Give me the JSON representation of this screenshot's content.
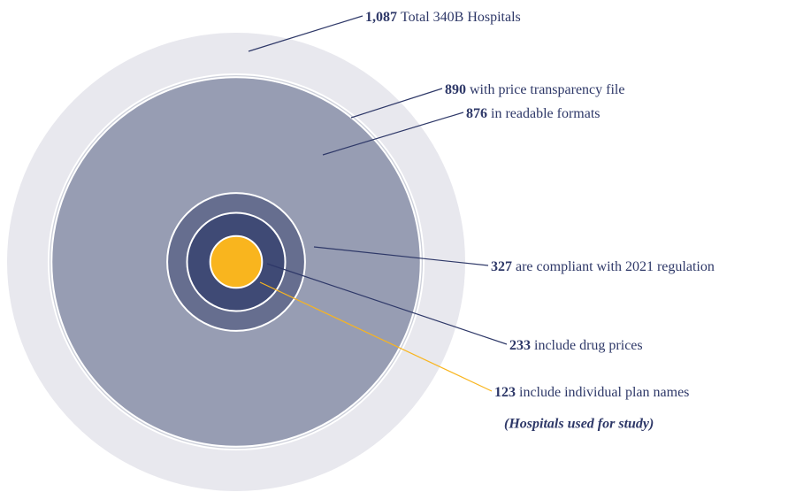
{
  "chart_data": {
    "type": "nested_circles",
    "categories": [
      "Total 340B Hospitals",
      "with price transparency file",
      "in readable formats",
      "are compliant with 2021 regulation",
      "include drug prices",
      "include individual plan names"
    ],
    "values": [
      1087,
      890,
      876,
      327,
      233,
      123
    ],
    "value_labels": [
      "1,087",
      "890",
      "876",
      "327",
      "233",
      "123"
    ],
    "colors": [
      "#e8e8ee",
      "#cdd0da",
      "#979db3",
      "#666e8f",
      "#3f4a75",
      "#f9b51e"
    ],
    "line_colors": [
      "#2e3868",
      "#2e3868",
      "#2e3868",
      "#2e3868",
      "#2e3868",
      "#f9b51e"
    ],
    "annotation": "(Hospitals used for study)"
  }
}
